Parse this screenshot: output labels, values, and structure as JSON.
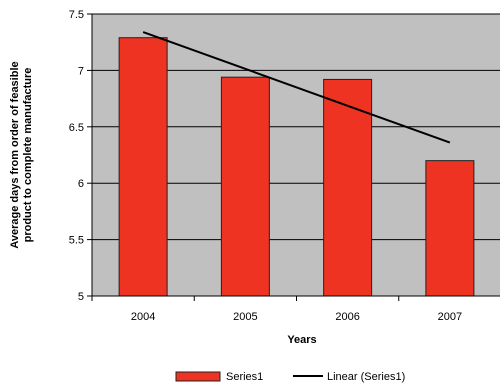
{
  "chart_data": {
    "type": "bar",
    "categories": [
      "2004",
      "2005",
      "2006",
      "2007"
    ],
    "series": [
      {
        "name": "Series1",
        "values": [
          7.29,
          6.94,
          6.92,
          6.2
        ]
      }
    ],
    "trendline": {
      "name": "Linear (Series1)",
      "type": "linear",
      "start": 7.34,
      "end": 6.36
    },
    "xlabel": "Years",
    "ylabel_lines": [
      "Average days from order of feasible",
      "product to complete manufacture"
    ],
    "ylim": [
      5,
      7.5
    ],
    "yticks": [
      "5",
      "5.5",
      "6",
      "6.5",
      "7",
      "7.5"
    ],
    "grid": true,
    "legend_placement": "bottom",
    "colors": {
      "plot_background": "#c0c0c0",
      "bar_fill": "#ee3322",
      "bar_stroke": "#222222",
      "trendline": "#000000",
      "gridline": "#000000"
    }
  }
}
